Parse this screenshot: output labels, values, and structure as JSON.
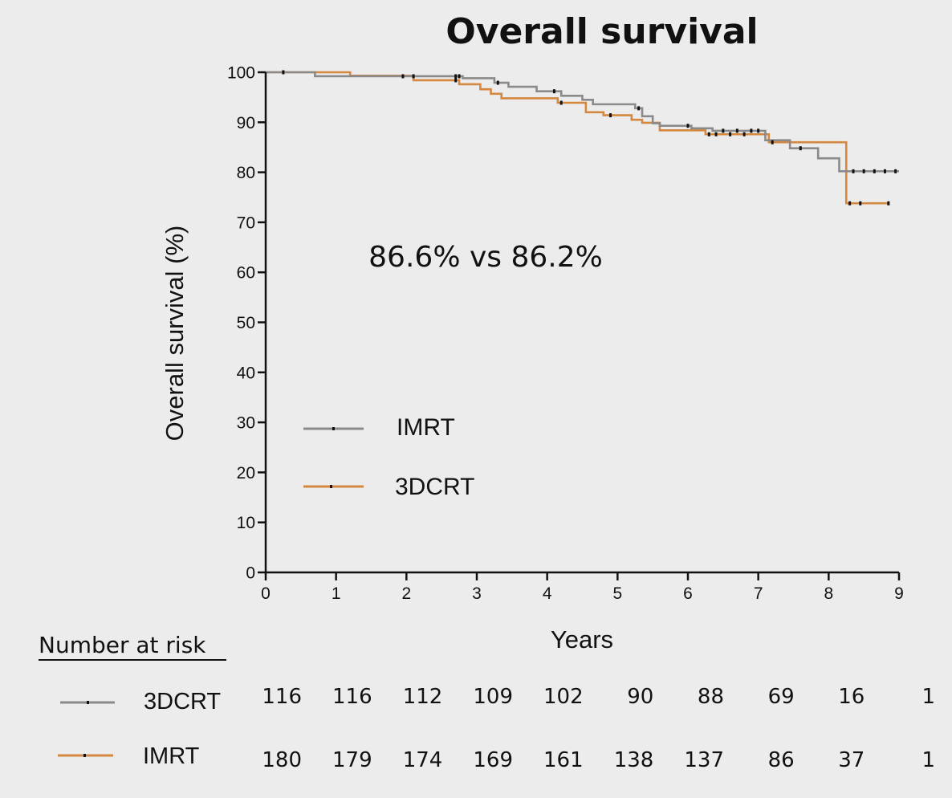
{
  "chart_data": {
    "type": "line",
    "title": "Overall survival",
    "xlabel": "Years",
    "ylabel": "Overall survival (%)",
    "xlim": [
      0,
      9
    ],
    "ylim": [
      0,
      100
    ],
    "xticks": [
      0,
      1,
      2,
      3,
      4,
      5,
      6,
      7,
      8,
      9
    ],
    "yticks": [
      0,
      10,
      20,
      30,
      40,
      50,
      60,
      70,
      80,
      90,
      100
    ],
    "grid": false,
    "legend_placement": "center-left",
    "annotation": "86.6% vs 86.2%",
    "series": [
      {
        "name": "IMRT",
        "color": "#8a8a8a",
        "x": [
          0,
          0.7,
          2.8,
          3.25,
          3.45,
          3.85,
          4.2,
          4.5,
          4.65,
          5.25,
          5.35,
          5.5,
          5.6,
          6.05,
          6.35,
          7.1,
          7.45,
          7.85,
          8.15,
          9.0
        ],
        "y": [
          100,
          99.2,
          98.8,
          97.9,
          97.1,
          96.2,
          95.3,
          94.5,
          93.6,
          92.8,
          91.2,
          89.8,
          89.3,
          88.8,
          88.3,
          86.4,
          84.8,
          82.8,
          80.2,
          80.2
        ],
        "censor_x": [
          0.25,
          1.95,
          2.1,
          2.7,
          2.75,
          3.3,
          4.1,
          5.3,
          6.0,
          6.5,
          6.7,
          6.9,
          7.0,
          7.6,
          8.35,
          8.5,
          8.65,
          8.8,
          8.95
        ]
      },
      {
        "name": "3DCRT",
        "color": "#d4873f",
        "x": [
          0,
          1.2,
          2.1,
          2.75,
          3.05,
          3.2,
          3.35,
          4.15,
          4.55,
          4.8,
          5.0,
          5.2,
          5.35,
          5.6,
          6.25,
          7.15,
          8.25,
          8.85
        ],
        "y": [
          100,
          99.3,
          98.4,
          97.6,
          96.6,
          95.7,
          94.8,
          93.9,
          92.0,
          91.4,
          91.4,
          90.5,
          89.9,
          88.4,
          87.6,
          86.0,
          73.8,
          73.8
        ],
        "censor_x": [
          2.7,
          4.2,
          4.9,
          6.3,
          6.4,
          6.6,
          6.8,
          7.2,
          8.3,
          8.45,
          8.85
        ]
      }
    ],
    "number_at_risk": {
      "heading": "Number at risk",
      "rows": [
        {
          "label": "3DCRT",
          "line_color": "#8a8a8a",
          "values": [
            "116",
            "116",
            "112",
            "109",
            "102",
            "90",
            "88",
            "69",
            "16",
            "1"
          ]
        },
        {
          "label": "IMRT",
          "line_color": "#d4873f",
          "values": [
            "180",
            "179",
            "174",
            "169",
            "161",
            "138",
            "137",
            "86",
            "37",
            "1"
          ]
        }
      ]
    }
  }
}
